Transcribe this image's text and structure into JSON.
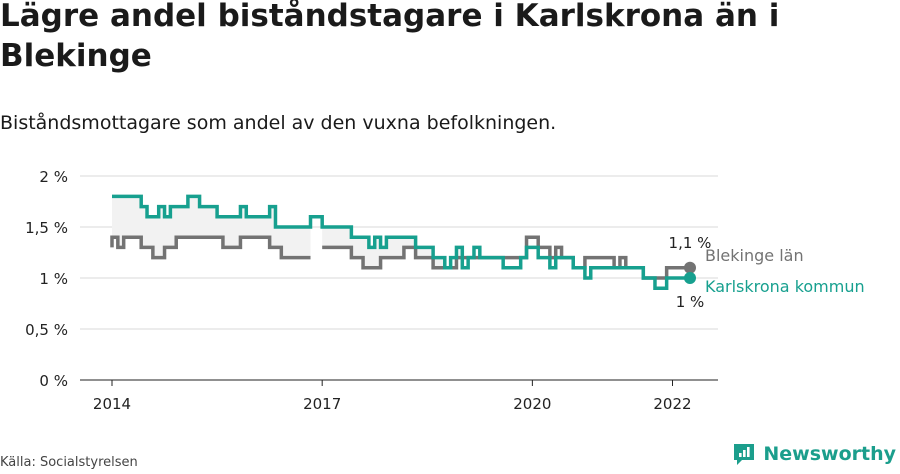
{
  "title": "Lägre andel biståndstagare i Karlskrona än i Blekinge",
  "subtitle": "Biståndsmottagare som andel av den vuxna befolkningen.",
  "source": "Källa: Socialstyrelsen",
  "brand": "Newsworthy",
  "colors": {
    "karlskrona": "#17a08f",
    "blekinge": "#737373",
    "grid": "#d9d9d9",
    "fill": "#f2f2f2"
  },
  "chart_data": {
    "type": "line",
    "x_unit": "month",
    "x_start": "2014-01",
    "ylim": [
      0,
      2
    ],
    "yticks": [
      {
        "value": 0,
        "label": "0 %"
      },
      {
        "value": 0.5,
        "label": "0,5 %"
      },
      {
        "value": 1,
        "label": "1 %"
      },
      {
        "value": 1.5,
        "label": "1,5 %"
      },
      {
        "value": 2,
        "label": "2 %"
      }
    ],
    "xticks": [
      {
        "month_index": 0,
        "label": "2014"
      },
      {
        "month_index": 36,
        "label": "2017"
      },
      {
        "month_index": 72,
        "label": "2020"
      },
      {
        "month_index": 96,
        "label": "2022"
      }
    ],
    "series": [
      {
        "name": "Karlskrona kommun",
        "end_label": "1 %",
        "values": [
          1.8,
          1.8,
          1.8,
          1.8,
          1.8,
          1.8,
          1.7,
          1.6,
          1.6,
          1.7,
          1.6,
          1.7,
          1.7,
          1.7,
          1.8,
          1.8,
          1.7,
          1.7,
          1.7,
          1.6,
          1.6,
          1.6,
          1.6,
          1.7,
          1.6,
          1.6,
          1.6,
          1.6,
          1.7,
          1.5,
          1.5,
          1.5,
          1.5,
          1.5,
          1.5,
          1.6,
          1.6,
          1.5,
          1.5,
          1.5,
          1.5,
          1.5,
          1.4,
          1.4,
          1.4,
          1.3,
          1.4,
          1.3,
          1.4,
          1.4,
          1.4,
          1.4,
          1.4,
          1.3,
          1.3,
          1.3,
          1.2,
          1.2,
          1.1,
          1.2,
          1.3,
          1.1,
          1.2,
          1.3,
          1.2,
          1.2,
          1.2,
          1.2,
          1.1,
          1.1,
          1.1,
          1.2,
          1.3,
          1.3,
          1.2,
          1.2,
          1.1,
          1.2,
          1.2,
          1.2,
          1.1,
          1.1,
          1.0,
          1.1,
          1.1,
          1.1,
          1.1,
          1.1,
          1.1,
          1.1,
          1.1,
          1.1,
          1.0,
          1.0,
          0.9,
          0.9,
          1.0,
          1.0,
          1.0,
          1.0
        ]
      },
      {
        "name": "Blekinge län",
        "end_label": "1,1 %",
        "values": [
          1.3,
          1.4,
          1.3,
          1.4,
          1.4,
          1.4,
          1.3,
          1.3,
          1.2,
          1.2,
          1.3,
          1.3,
          1.4,
          1.4,
          1.4,
          1.4,
          1.4,
          1.4,
          1.4,
          1.4,
          1.3,
          1.3,
          1.3,
          1.4,
          1.4,
          1.4,
          1.4,
          1.4,
          1.3,
          1.3,
          1.2,
          1.2,
          1.2,
          1.2,
          1.2,
          null,
          1.3,
          1.3,
          1.3,
          1.3,
          1.3,
          1.3,
          1.2,
          1.2,
          1.1,
          1.1,
          1.1,
          1.2,
          1.2,
          1.2,
          1.2,
          1.3,
          1.3,
          1.2,
          1.2,
          1.2,
          1.1,
          1.1,
          1.1,
          1.1,
          1.2,
          1.2,
          1.2,
          1.2,
          1.2,
          1.2,
          1.2,
          1.2,
          1.2,
          1.2,
          1.2,
          1.2,
          1.4,
          1.4,
          1.3,
          1.3,
          1.2,
          1.3,
          1.2,
          1.2,
          1.1,
          1.1,
          1.2,
          1.2,
          1.2,
          1.2,
          1.2,
          1.1,
          1.2,
          1.1,
          1.1,
          1.1,
          1.0,
          1.0,
          1.0,
          1.0,
          1.1,
          1.1,
          1.1,
          1.1
        ]
      }
    ]
  }
}
